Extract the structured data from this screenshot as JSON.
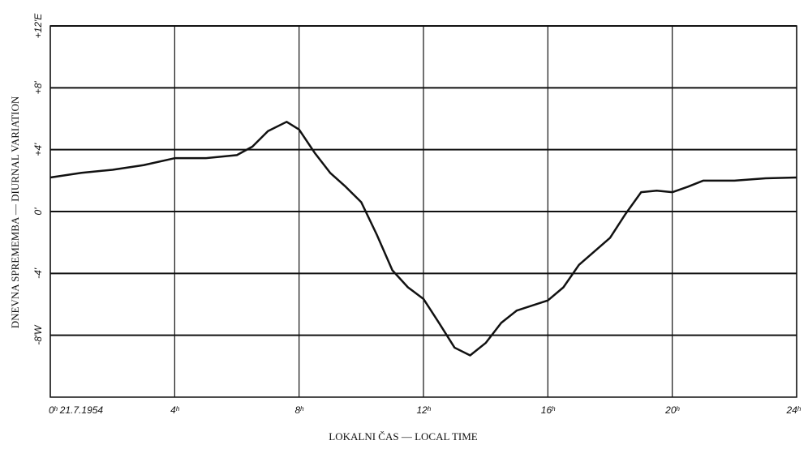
{
  "chart_data": {
    "type": "line",
    "y_label": "DNEVNA SPREMEMBA — DIURNAL VARIATION",
    "x_label": "LOKALNI ČAS — LOCAL TIME",
    "x": [
      0,
      1,
      2,
      3,
      4,
      5,
      6,
      6.5,
      7,
      7.6,
      8,
      8.5,
      9,
      9.5,
      10,
      10.5,
      11,
      11.5,
      12,
      12.5,
      13,
      13.5,
      14,
      14.5,
      15,
      16,
      16.5,
      17,
      18,
      18.5,
      19,
      19.5,
      20,
      20.5,
      21,
      22,
      23,
      24
    ],
    "series": [
      {
        "color": "#111111",
        "values": [
          2.2,
          2.5,
          2.7,
          3.0,
          3.45,
          3.45,
          3.65,
          4.2,
          5.2,
          5.8,
          5.3,
          3.8,
          2.5,
          1.6,
          0.6,
          -1.5,
          -3.8,
          -4.9,
          -5.65,
          -7.2,
          -8.8,
          -9.3,
          -8.5,
          -7.2,
          -6.4,
          -5.75,
          -4.9,
          -3.45,
          -1.7,
          -0.15,
          1.25,
          1.35,
          1.25,
          1.6,
          2.0,
          2.0,
          2.15,
          2.2
        ]
      }
    ],
    "xlim": [
      0,
      24
    ],
    "xticks": [
      {
        "value": 0,
        "label": "0ʰ 21.7.1954"
      },
      {
        "value": 4,
        "label": "4ʰ"
      },
      {
        "value": 8,
        "label": "8ʰ"
      },
      {
        "value": 12,
        "label": "12ʰ"
      },
      {
        "value": 16,
        "label": "16ʰ"
      },
      {
        "value": 20,
        "label": "20ʰ"
      },
      {
        "value": 24,
        "label": "24ʰ"
      }
    ],
    "ylim": [
      -12,
      12
    ],
    "yticks": [
      {
        "value": 12,
        "label": "+12'E"
      },
      {
        "value": 8,
        "label": "+8'"
      },
      {
        "value": 4,
        "label": "+4'"
      },
      {
        "value": 0,
        "label": "0'"
      },
      {
        "value": -4,
        "label": "-4'"
      },
      {
        "value": -8,
        "label": "-8'W"
      }
    ],
    "grid": true
  }
}
